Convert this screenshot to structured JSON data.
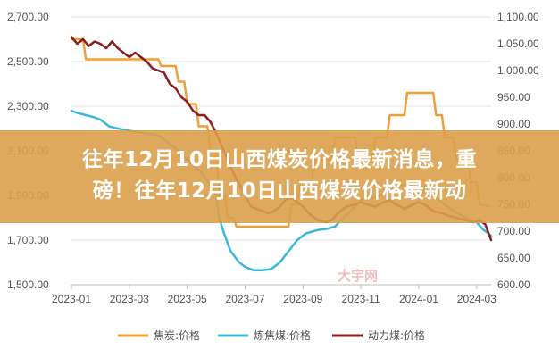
{
  "headline": {
    "line1": "往年12月10日山西煤炭价格最新消息，重",
    "line2": "磅！往年12月10日山西煤炭价格最新动"
  },
  "watermark": "大宇网",
  "chart_data": {
    "type": "line",
    "grid": true,
    "legend_position": "bottom",
    "x_ticks": [
      "2023-01",
      "2023-03",
      "2023-05",
      "2023-07",
      "2023-09",
      "2023-11",
      "2024-01",
      "2024-03"
    ],
    "x_range": [
      0,
      14.5
    ],
    "y_left": {
      "range": [
        1500,
        2700
      ],
      "ticks": [
        1500,
        1700,
        1900,
        2100,
        2300,
        2500,
        2700
      ],
      "tick_labels": [
        "1,500.00",
        "1,700.00",
        "1,900.00",
        "2,100.00",
        "2,300.00",
        "2,500.00",
        "2,700.00"
      ]
    },
    "y_right": {
      "range": [
        600,
        1100
      ],
      "ticks": [
        600,
        650,
        700,
        750,
        800,
        850,
        900,
        950,
        1000,
        1050,
        1100
      ],
      "tick_labels": [
        "600.00",
        "650.00",
        "700.00",
        "750.00",
        "800.00",
        "850.00",
        "900.00",
        "950.00",
        "1,000.00",
        "1,050.00",
        "1,100.00"
      ]
    },
    "series": [
      {
        "name": "焦炭:价格",
        "axis": "left",
        "color": "#f0a032",
        "points": [
          [
            0,
            2600
          ],
          [
            0.4,
            2600
          ],
          [
            0.5,
            2510
          ],
          [
            1.0,
            2510
          ],
          [
            1.5,
            2510
          ],
          [
            2.0,
            2510
          ],
          [
            2.5,
            2510
          ],
          [
            3.0,
            2510
          ],
          [
            3.1,
            2480
          ],
          [
            3.6,
            2480
          ],
          [
            3.7,
            2410
          ],
          [
            3.9,
            2410
          ],
          [
            4.0,
            2310
          ],
          [
            4.3,
            2310
          ],
          [
            4.4,
            2210
          ],
          [
            4.7,
            2210
          ],
          [
            4.8,
            2100
          ],
          [
            5.0,
            2100
          ],
          [
            5.1,
            1900
          ],
          [
            5.3,
            1900
          ],
          [
            5.4,
            1800
          ],
          [
            5.6,
            1800
          ],
          [
            5.7,
            1760
          ],
          [
            6.0,
            1760
          ],
          [
            6.5,
            1760
          ],
          [
            7.0,
            1760
          ],
          [
            7.5,
            1760
          ],
          [
            7.6,
            1860
          ],
          [
            7.8,
            1860
          ],
          [
            7.9,
            1960
          ],
          [
            8.3,
            1960
          ],
          [
            8.4,
            2060
          ],
          [
            9.0,
            2060
          ],
          [
            9.1,
            2160
          ],
          [
            9.8,
            2160
          ],
          [
            9.9,
            2060
          ],
          [
            10.4,
            2060
          ],
          [
            10.5,
            2160
          ],
          [
            10.9,
            2160
          ],
          [
            11.0,
            2260
          ],
          [
            11.5,
            2260
          ],
          [
            11.6,
            2360
          ],
          [
            12.5,
            2360
          ],
          [
            12.6,
            2260
          ],
          [
            12.8,
            2260
          ],
          [
            12.9,
            2160
          ],
          [
            13.2,
            2160
          ],
          [
            13.3,
            2060
          ],
          [
            13.7,
            2060
          ],
          [
            13.8,
            1960
          ],
          [
            14.0,
            1960
          ],
          [
            14.1,
            1860
          ],
          [
            14.5,
            1850
          ]
        ]
      },
      {
        "name": "炼焦煤:价格",
        "axis": "left",
        "color": "#3cb8d6",
        "points": [
          [
            0,
            2280
          ],
          [
            0.2,
            2270
          ],
          [
            0.5,
            2260
          ],
          [
            0.8,
            2250
          ],
          [
            1.0,
            2240
          ],
          [
            1.3,
            2210
          ],
          [
            1.6,
            2200
          ],
          [
            2.0,
            2190
          ],
          [
            2.5,
            2180
          ],
          [
            3.0,
            2170
          ],
          [
            3.3,
            2140
          ],
          [
            3.6,
            2110
          ],
          [
            4.0,
            2060
          ],
          [
            4.5,
            2000
          ],
          [
            4.8,
            1950
          ],
          [
            5.0,
            1900
          ],
          [
            5.1,
            1800
          ],
          [
            5.3,
            1720
          ],
          [
            5.5,
            1650
          ],
          [
            5.8,
            1600
          ],
          [
            6.0,
            1580
          ],
          [
            6.3,
            1565
          ],
          [
            6.6,
            1565
          ],
          [
            6.9,
            1570
          ],
          [
            7.2,
            1600
          ],
          [
            7.5,
            1650
          ],
          [
            7.8,
            1700
          ],
          [
            8.1,
            1730
          ],
          [
            8.5,
            1745
          ],
          [
            8.8,
            1750
          ],
          [
            9.1,
            1760
          ],
          [
            9.4,
            1800
          ],
          [
            9.8,
            1850
          ],
          [
            10.0,
            1880
          ],
          [
            10.5,
            1890
          ],
          [
            11.0,
            1920
          ],
          [
            11.5,
            1950
          ],
          [
            12.0,
            1930
          ],
          [
            12.5,
            1900
          ],
          [
            12.8,
            1870
          ],
          [
            13.2,
            1830
          ],
          [
            13.6,
            1800
          ],
          [
            14.0,
            1780
          ],
          [
            14.2,
            1750
          ],
          [
            14.4,
            1730
          ],
          [
            14.5,
            1720
          ]
        ]
      },
      {
        "name": "动力煤:价格",
        "axis": "left",
        "color": "#8b1e1e",
        "points": [
          [
            0,
            2610
          ],
          [
            0.2,
            2580
          ],
          [
            0.4,
            2600
          ],
          [
            0.6,
            2570
          ],
          [
            0.8,
            2590
          ],
          [
            1.0,
            2580
          ],
          [
            1.2,
            2560
          ],
          [
            1.4,
            2590
          ],
          [
            1.6,
            2560
          ],
          [
            1.8,
            2540
          ],
          [
            2.0,
            2520
          ],
          [
            2.2,
            2540
          ],
          [
            2.4,
            2520
          ],
          [
            2.6,
            2500
          ],
          [
            2.8,
            2470
          ],
          [
            3.0,
            2460
          ],
          [
            3.2,
            2450
          ],
          [
            3.4,
            2400
          ],
          [
            3.6,
            2380
          ],
          [
            3.8,
            2340
          ],
          [
            4.0,
            2320
          ],
          [
            4.2,
            2280
          ],
          [
            4.4,
            2260
          ],
          [
            4.6,
            2260
          ],
          [
            4.8,
            2230
          ],
          [
            5.0,
            2180
          ],
          [
            5.2,
            2120
          ],
          [
            5.4,
            2060
          ],
          [
            5.6,
            2000
          ],
          [
            5.8,
            1950
          ],
          [
            6.0,
            1900
          ],
          [
            6.2,
            1850
          ],
          [
            6.4,
            1840
          ],
          [
            6.6,
            1830
          ],
          [
            6.8,
            1820
          ],
          [
            7.0,
            1830
          ],
          [
            7.2,
            1850
          ],
          [
            7.4,
            1880
          ],
          [
            7.6,
            1890
          ],
          [
            7.8,
            1870
          ],
          [
            8.0,
            1850
          ],
          [
            8.2,
            1820
          ],
          [
            8.5,
            1790
          ],
          [
            8.8,
            1780
          ],
          [
            9.0,
            1790
          ],
          [
            9.2,
            1820
          ],
          [
            9.5,
            1850
          ],
          [
            9.8,
            1860
          ],
          [
            10.0,
            1870
          ],
          [
            10.2,
            1860
          ],
          [
            10.5,
            1850
          ],
          [
            10.8,
            1870
          ],
          [
            11.0,
            1880
          ],
          [
            11.2,
            1860
          ],
          [
            11.5,
            1840
          ],
          [
            11.8,
            1860
          ],
          [
            12.0,
            1870
          ],
          [
            12.2,
            1860
          ],
          [
            12.5,
            1830
          ],
          [
            12.8,
            1820
          ],
          [
            13.0,
            1810
          ],
          [
            13.3,
            1800
          ],
          [
            13.6,
            1790
          ],
          [
            13.9,
            1780
          ],
          [
            14.1,
            1790
          ],
          [
            14.3,
            1770
          ],
          [
            14.5,
            1700
          ]
        ]
      }
    ]
  }
}
